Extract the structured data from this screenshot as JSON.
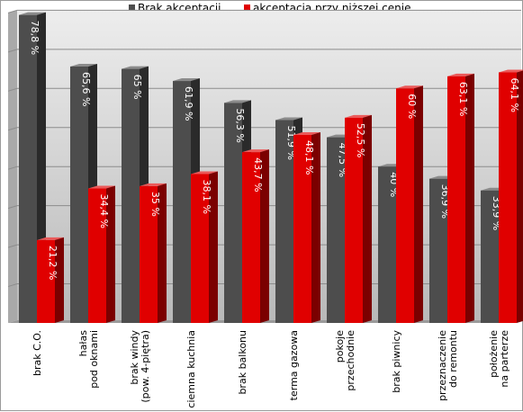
{
  "chart_data": {
    "type": "bar",
    "title": "",
    "xlabel": "",
    "ylabel": "",
    "ylim": [
      0,
      80
    ],
    "grid": true,
    "legend_position": "top",
    "categories": [
      [
        "brak C.O."
      ],
      [
        "hałas",
        "pod oknami"
      ],
      [
        "brak windy",
        "(pow. 4-piętra)"
      ],
      [
        "ciemna kuchnia"
      ],
      [
        "brak balkonu"
      ],
      [
        "terma gazowa"
      ],
      [
        "pokoje",
        "przechodnie"
      ],
      [
        "brak piwnicy"
      ],
      [
        "przeznaczenie",
        "do remontu"
      ],
      [
        "położenie",
        "na parterze"
      ]
    ],
    "series": [
      {
        "name": "Brak akceptacji",
        "color": "#4d4d4d",
        "values": [
          78.8,
          65.6,
          65,
          61.9,
          56.3,
          51.9,
          47.5,
          40,
          36.9,
          33.9
        ],
        "labels": [
          "78,8 %",
          "65,6 %",
          "65 %",
          "61,9 %",
          "56,3 %",
          "51,9 %",
          "47,5 %",
          "40 %",
          "36,9 %",
          "33,9 %"
        ]
      },
      {
        "name": "akceptacja przy niższej cenie",
        "color": "#e00000",
        "values": [
          21.2,
          34.4,
          35,
          38.1,
          43.7,
          48.1,
          52.5,
          60,
          63.1,
          64.1
        ],
        "labels": [
          "21,2 %",
          "34,4 %",
          "35 %",
          "38,1 %",
          "43,7 %",
          "48,1 %",
          "52,5 %",
          "60 %",
          "63,1 %",
          "64,1 %"
        ]
      }
    ]
  }
}
